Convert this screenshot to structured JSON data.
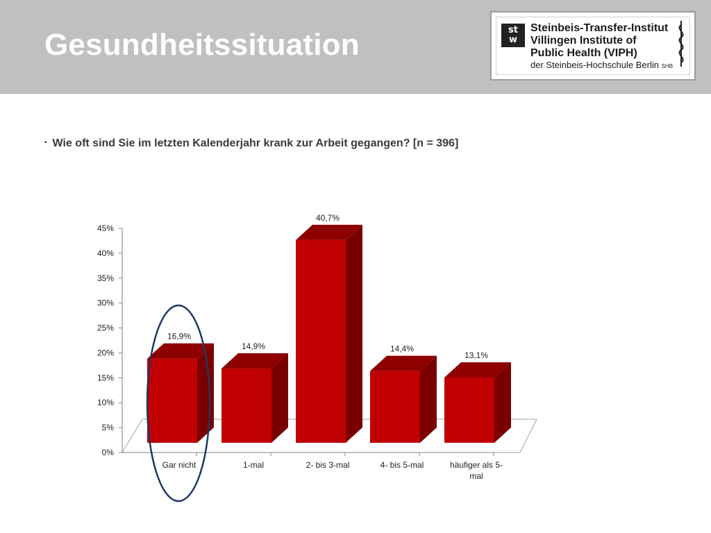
{
  "header": {
    "title": "Gesundheitssituation"
  },
  "logo": {
    "mark_line1": "st",
    "mark_line2": "w",
    "line1": "Steinbeis-Transfer-Institut",
    "line2": "Villingen Institute of",
    "line3": "Public Health (VIPH)",
    "line4": "der Steinbeis-Hochschule Berlin",
    "line4_suffix": "SHB"
  },
  "bullet": {
    "marker": "▪",
    "text": "Wie oft sind Sie im letzten Kalenderjahr krank zur Arbeit gegangen? [n = 396]"
  },
  "chart_data": {
    "type": "bar",
    "categories": [
      "Gar nicht",
      "1-mal",
      "2- bis 3-mal",
      "4- bis 5-mal",
      "häufiger als 5-mal"
    ],
    "category_lines": [
      [
        "Gar nicht"
      ],
      [
        "1-mal"
      ],
      [
        "2- bis 3-mal"
      ],
      [
        "4- bis 5-mal"
      ],
      [
        "häufiger als 5-",
        "mal"
      ]
    ],
    "values": [
      16.9,
      14.9,
      40.7,
      14.4,
      13.1
    ],
    "value_labels": [
      "16,9%",
      "14,9%",
      "40,7%",
      "14,4%",
      "13,1%"
    ],
    "yticks": [
      "0%",
      "5%",
      "10%",
      "15%",
      "20%",
      "25%",
      "30%",
      "35%",
      "40%",
      "45%"
    ],
    "ylim": [
      0,
      45
    ],
    "three_d": true,
    "bar_color": "#c00000",
    "bar_side_color": "#7a0000",
    "bar_top_color": "#8e0000",
    "highlight_ellipse_color": "#1f3864",
    "highlighted_category": "Gar nicht",
    "grid": false,
    "title": "",
    "xlabel": "",
    "ylabel": ""
  }
}
